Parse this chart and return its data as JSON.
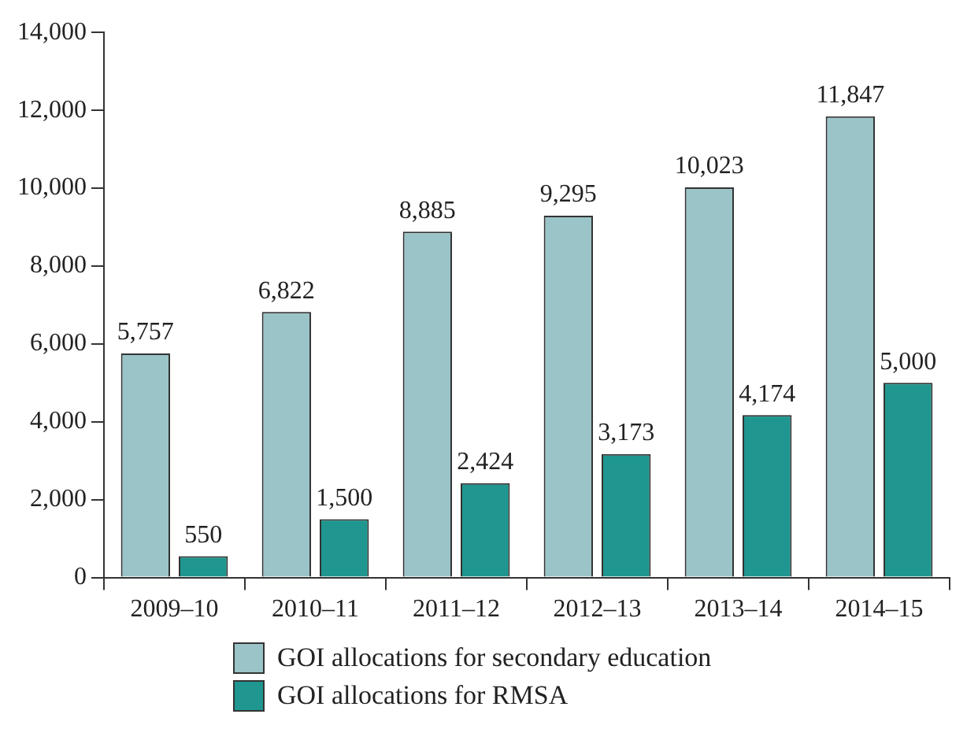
{
  "chart_data": {
    "type": "bar",
    "categories": [
      "2009–10",
      "2010–11",
      "2011–12",
      "2012–13",
      "2013–14",
      "2014–15"
    ],
    "series": [
      {
        "name": "GOI allocations for secondary education",
        "color": "#9ac4c8",
        "values": [
          5757,
          6822,
          8885,
          9295,
          10023,
          11847
        ],
        "value_labels": [
          "5,757",
          "6,822",
          "8,885",
          "9,295",
          "10,023",
          "11,847"
        ]
      },
      {
        "name": "GOI allocations for RMSA",
        "color": "#1f9690",
        "values": [
          550,
          1500,
          2424,
          3173,
          4174,
          5000
        ],
        "value_labels": [
          "550",
          "1,500",
          "2,424",
          "3,173",
          "4,174",
          "5,000"
        ]
      }
    ],
    "ylim": [
      0,
      14000
    ],
    "yticks": [
      {
        "value": 0,
        "label": "0"
      },
      {
        "value": 2000,
        "label": "2,000"
      },
      {
        "value": 4000,
        "label": "4,000"
      },
      {
        "value": 6000,
        "label": "6,000"
      },
      {
        "value": 8000,
        "label": "8,000"
      },
      {
        "value": 10000,
        "label": "10,000"
      },
      {
        "value": 12000,
        "label": "12,000"
      },
      {
        "value": 14000,
        "label": "14,000"
      }
    ],
    "grid": false,
    "legend": "bottom"
  }
}
